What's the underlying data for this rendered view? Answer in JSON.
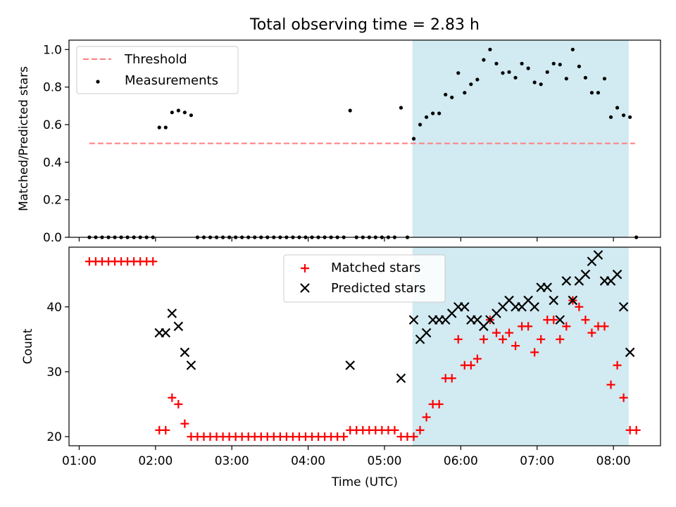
{
  "title": "Total observing time = 2.83 h",
  "colors": {
    "shade": "#add8e6",
    "threshold": "#ff7f7f",
    "matched": "#ff0000",
    "predicted": "#000000"
  },
  "chart_data": [
    {
      "type": "scatter",
      "ylabel": "Matched/Predicted stars",
      "ylim": [
        0,
        1.05
      ],
      "yticks": [
        0.0,
        0.2,
        0.4,
        0.6,
        0.8,
        1.0
      ],
      "ytick_labels": [
        "0.0",
        "0.2",
        "0.4",
        "0.6",
        "0.8",
        "1.0"
      ],
      "xlim": [
        "00:52",
        "08:37"
      ],
      "shaded_span": [
        "05:22",
        "08:12"
      ],
      "legend": {
        "position": "upper left",
        "threshold_label": "Threshold",
        "measurements_label": "Measurements"
      },
      "threshold": {
        "name": "Threshold",
        "value": 0.5,
        "x_range": [
          "01:08",
          "08:17"
        ]
      },
      "series": [
        {
          "name": "Measurements",
          "points": [
            [
              "01:08",
              0
            ],
            [
              "01:13",
              0
            ],
            [
              "01:18",
              0
            ],
            [
              "01:23",
              0
            ],
            [
              "01:28",
              0
            ],
            [
              "01:33",
              0
            ],
            [
              "01:38",
              0
            ],
            [
              "01:43",
              0
            ],
            [
              "01:48",
              0
            ],
            [
              "01:53",
              0
            ],
            [
              "01:58",
              0
            ],
            [
              "02:03",
              0.585
            ],
            [
              "02:08",
              0.585
            ],
            [
              "02:13",
              0.665
            ],
            [
              "02:18",
              0.675
            ],
            [
              "02:23",
              0.665
            ],
            [
              "02:28",
              0.65
            ],
            [
              "02:33",
              0
            ],
            [
              "02:38",
              0
            ],
            [
              "02:43",
              0
            ],
            [
              "02:48",
              0
            ],
            [
              "02:53",
              0
            ],
            [
              "02:58",
              0
            ],
            [
              "03:03",
              0
            ],
            [
              "03:08",
              0
            ],
            [
              "03:13",
              0
            ],
            [
              "03:18",
              0
            ],
            [
              "03:23",
              0
            ],
            [
              "03:28",
              0
            ],
            [
              "03:33",
              0
            ],
            [
              "03:38",
              0
            ],
            [
              "03:43",
              0
            ],
            [
              "03:48",
              0
            ],
            [
              "03:53",
              0
            ],
            [
              "03:58",
              0
            ],
            [
              "04:03",
              0
            ],
            [
              "04:08",
              0
            ],
            [
              "04:13",
              0
            ],
            [
              "04:18",
              0
            ],
            [
              "04:23",
              0
            ],
            [
              "04:28",
              0
            ],
            [
              "04:33",
              0.675
            ],
            [
              "04:38",
              0
            ],
            [
              "04:43",
              0
            ],
            [
              "04:48",
              0
            ],
            [
              "04:53",
              0
            ],
            [
              "04:58",
              0
            ],
            [
              "05:03",
              0
            ],
            [
              "05:08",
              0
            ],
            [
              "05:13",
              0.69
            ],
            [
              "05:18",
              0
            ],
            [
              "05:23",
              0.525
            ],
            [
              "05:28",
              0.6
            ],
            [
              "05:33",
              0.64
            ],
            [
              "05:38",
              0.66
            ],
            [
              "05:43",
              0.66
            ],
            [
              "05:48",
              0.76
            ],
            [
              "05:53",
              0.745
            ],
            [
              "05:58",
              0.875
            ],
            [
              "06:03",
              0.77
            ],
            [
              "06:08",
              0.815
            ],
            [
              "06:13",
              0.84
            ],
            [
              "06:18",
              0.945
            ],
            [
              "06:23",
              1.0
            ],
            [
              "06:28",
              0.925
            ],
            [
              "06:33",
              0.875
            ],
            [
              "06:38",
              0.88
            ],
            [
              "06:43",
              0.85
            ],
            [
              "06:48",
              0.925
            ],
            [
              "06:53",
              0.9
            ],
            [
              "06:58",
              0.825
            ],
            [
              "07:03",
              0.815
            ],
            [
              "07:08",
              0.88
            ],
            [
              "07:13",
              0.925
            ],
            [
              "07:18",
              0.92
            ],
            [
              "07:23",
              0.845
            ],
            [
              "07:28",
              1.0
            ],
            [
              "07:33",
              0.91
            ],
            [
              "07:38",
              0.85
            ],
            [
              "07:43",
              0.77
            ],
            [
              "07:48",
              0.77
            ],
            [
              "07:53",
              0.845
            ],
            [
              "07:58",
              0.64
            ],
            [
              "08:03",
              0.69
            ],
            [
              "08:08",
              0.65
            ],
            [
              "08:13",
              0.64
            ],
            [
              "08:18",
              0
            ]
          ]
        }
      ]
    },
    {
      "type": "scatter",
      "ylabel": "Count",
      "xlabel": "Time (UTC)",
      "ylim": [
        18.6,
        49.2
      ],
      "yticks": [
        20,
        30,
        40
      ],
      "ytick_labels": [
        "20",
        "30",
        "40"
      ],
      "xlim": [
        "00:52",
        "08:37"
      ],
      "xticks": [
        "01:00",
        "02:00",
        "03:00",
        "04:00",
        "05:00",
        "06:00",
        "07:00",
        "08:00"
      ],
      "xtick_labels": [
        "01:00",
        "02:00",
        "03:00",
        "04:00",
        "05:00",
        "06:00",
        "07:00",
        "08:00"
      ],
      "shaded_span": [
        "05:22",
        "08:12"
      ],
      "legend": {
        "position": "upper center",
        "matched_label": "Matched stars",
        "predicted_label": "Predicted stars"
      },
      "series": [
        {
          "name": "Matched stars",
          "marker": "plus",
          "points": [
            [
              "01:08",
              47
            ],
            [
              "01:13",
              47
            ],
            [
              "01:18",
              47
            ],
            [
              "01:23",
              47
            ],
            [
              "01:28",
              47
            ],
            [
              "01:33",
              47
            ],
            [
              "01:38",
              47
            ],
            [
              "01:43",
              47
            ],
            [
              "01:48",
              47
            ],
            [
              "01:53",
              47
            ],
            [
              "01:58",
              47
            ],
            [
              "02:03",
              21
            ],
            [
              "02:08",
              21
            ],
            [
              "02:13",
              26
            ],
            [
              "02:18",
              25
            ],
            [
              "02:23",
              22
            ],
            [
              "02:28",
              20
            ],
            [
              "02:33",
              20
            ],
            [
              "02:38",
              20
            ],
            [
              "02:43",
              20
            ],
            [
              "02:48",
              20
            ],
            [
              "02:53",
              20
            ],
            [
              "02:58",
              20
            ],
            [
              "03:03",
              20
            ],
            [
              "03:08",
              20
            ],
            [
              "03:13",
              20
            ],
            [
              "03:18",
              20
            ],
            [
              "03:23",
              20
            ],
            [
              "03:28",
              20
            ],
            [
              "03:33",
              20
            ],
            [
              "03:38",
              20
            ],
            [
              "03:43",
              20
            ],
            [
              "03:48",
              20
            ],
            [
              "03:53",
              20
            ],
            [
              "03:58",
              20
            ],
            [
              "04:03",
              20
            ],
            [
              "04:08",
              20
            ],
            [
              "04:13",
              20
            ],
            [
              "04:18",
              20
            ],
            [
              "04:23",
              20
            ],
            [
              "04:28",
              20
            ],
            [
              "04:33",
              21
            ],
            [
              "04:38",
              21
            ],
            [
              "04:43",
              21
            ],
            [
              "04:48",
              21
            ],
            [
              "04:53",
              21
            ],
            [
              "04:58",
              21
            ],
            [
              "05:03",
              21
            ],
            [
              "05:08",
              21
            ],
            [
              "05:13",
              20
            ],
            [
              "05:18",
              20
            ],
            [
              "05:23",
              20
            ],
            [
              "05:28",
              21
            ],
            [
              "05:33",
              23
            ],
            [
              "05:38",
              25
            ],
            [
              "05:43",
              25
            ],
            [
              "05:48",
              29
            ],
            [
              "05:53",
              29
            ],
            [
              "05:58",
              35
            ],
            [
              "06:03",
              31
            ],
            [
              "06:08",
              31
            ],
            [
              "06:13",
              32
            ],
            [
              "06:18",
              35
            ],
            [
              "06:23",
              38
            ],
            [
              "06:28",
              36
            ],
            [
              "06:33",
              35
            ],
            [
              "06:38",
              36
            ],
            [
              "06:43",
              34
            ],
            [
              "06:48",
              37
            ],
            [
              "06:53",
              37
            ],
            [
              "06:58",
              33
            ],
            [
              "07:03",
              35
            ],
            [
              "07:08",
              38
            ],
            [
              "07:13",
              38
            ],
            [
              "07:18",
              35
            ],
            [
              "07:23",
              37
            ],
            [
              "07:28",
              41
            ],
            [
              "07:33",
              40
            ],
            [
              "07:38",
              38
            ],
            [
              "07:43",
              36
            ],
            [
              "07:48",
              37
            ],
            [
              "07:53",
              37
            ],
            [
              "07:58",
              28
            ],
            [
              "08:03",
              31
            ],
            [
              "08:08",
              26
            ],
            [
              "08:13",
              21
            ],
            [
              "08:18",
              21
            ]
          ]
        },
        {
          "name": "Predicted stars",
          "marker": "x",
          "points": [
            [
              "02:03",
              36
            ],
            [
              "02:08",
              36
            ],
            [
              "02:13",
              39
            ],
            [
              "02:18",
              37
            ],
            [
              "02:23",
              33
            ],
            [
              "02:28",
              31
            ],
            [
              "04:33",
              31
            ],
            [
              "05:13",
              29
            ],
            [
              "05:23",
              38
            ],
            [
              "05:28",
              35
            ],
            [
              "05:33",
              36
            ],
            [
              "05:38",
              38
            ],
            [
              "05:43",
              38
            ],
            [
              "05:48",
              38
            ],
            [
              "05:53",
              39
            ],
            [
              "05:58",
              40
            ],
            [
              "06:03",
              40
            ],
            [
              "06:08",
              38
            ],
            [
              "06:13",
              38
            ],
            [
              "06:18",
              37
            ],
            [
              "06:23",
              38
            ],
            [
              "06:28",
              39
            ],
            [
              "06:33",
              40
            ],
            [
              "06:38",
              41
            ],
            [
              "06:43",
              40
            ],
            [
              "06:48",
              40
            ],
            [
              "06:53",
              41
            ],
            [
              "06:58",
              40
            ],
            [
              "07:03",
              43
            ],
            [
              "07:08",
              43
            ],
            [
              "07:13",
              41
            ],
            [
              "07:18",
              38
            ],
            [
              "07:23",
              44
            ],
            [
              "07:28",
              41
            ],
            [
              "07:33",
              44
            ],
            [
              "07:38",
              45
            ],
            [
              "07:43",
              47
            ],
            [
              "07:48",
              48
            ],
            [
              "07:53",
              44
            ],
            [
              "07:58",
              44
            ],
            [
              "08:03",
              45
            ],
            [
              "08:08",
              40
            ],
            [
              "08:13",
              33
            ]
          ]
        }
      ]
    }
  ]
}
